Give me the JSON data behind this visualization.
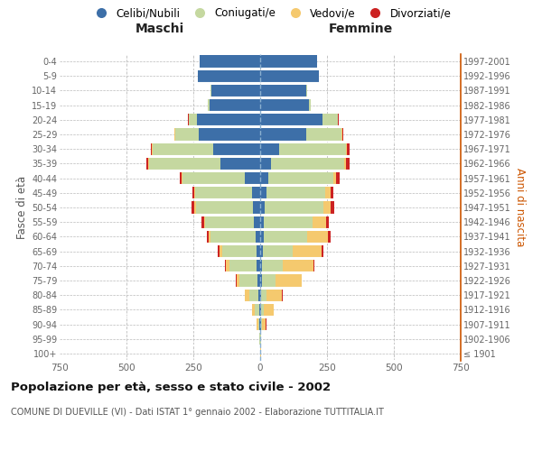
{
  "age_groups": [
    "100+",
    "95-99",
    "90-94",
    "85-89",
    "80-84",
    "75-79",
    "70-74",
    "65-69",
    "60-64",
    "55-59",
    "50-54",
    "45-49",
    "40-44",
    "35-39",
    "30-34",
    "25-29",
    "20-24",
    "15-19",
    "10-14",
    "5-9",
    "0-4"
  ],
  "birth_years": [
    "≤ 1901",
    "1902-1906",
    "1907-1911",
    "1912-1916",
    "1917-1921",
    "1922-1926",
    "1927-1931",
    "1932-1936",
    "1937-1941",
    "1942-1946",
    "1947-1951",
    "1952-1956",
    "1957-1961",
    "1962-1966",
    "1967-1971",
    "1972-1976",
    "1977-1981",
    "1982-1986",
    "1987-1991",
    "1992-1996",
    "1997-2001"
  ],
  "male": {
    "celibi": [
      1,
      1,
      2,
      5,
      8,
      10,
      12,
      15,
      18,
      22,
      28,
      32,
      58,
      148,
      175,
      230,
      238,
      190,
      182,
      232,
      228
    ],
    "coniugati": [
      0,
      1,
      5,
      14,
      34,
      68,
      102,
      128,
      168,
      183,
      212,
      212,
      232,
      268,
      228,
      88,
      28,
      5,
      3,
      0,
      0
    ],
    "vedovi": [
      0,
      1,
      5,
      10,
      14,
      10,
      14,
      10,
      5,
      5,
      5,
      3,
      3,
      2,
      2,
      2,
      2,
      0,
      0,
      0,
      0
    ],
    "divorziati": [
      0,
      0,
      0,
      0,
      1,
      2,
      3,
      5,
      8,
      10,
      12,
      8,
      8,
      8,
      5,
      2,
      2,
      0,
      0,
      0,
      0
    ]
  },
  "female": {
    "nubili": [
      1,
      1,
      2,
      5,
      5,
      8,
      8,
      10,
      12,
      15,
      18,
      22,
      30,
      42,
      72,
      172,
      232,
      182,
      172,
      218,
      212
    ],
    "coniugate": [
      0,
      1,
      5,
      10,
      18,
      48,
      78,
      112,
      162,
      182,
      218,
      222,
      242,
      272,
      248,
      132,
      58,
      8,
      3,
      0,
      0
    ],
    "vedove": [
      1,
      3,
      14,
      34,
      58,
      98,
      112,
      108,
      78,
      48,
      28,
      18,
      12,
      8,
      5,
      3,
      2,
      0,
      0,
      0,
      0
    ],
    "divorziate": [
      0,
      0,
      1,
      1,
      2,
      2,
      5,
      8,
      12,
      12,
      12,
      12,
      12,
      12,
      8,
      5,
      3,
      0,
      0,
      0,
      0
    ]
  },
  "colors": {
    "celibi": "#3d6fa8",
    "coniugati": "#c5d8a0",
    "vedovi": "#f5c96e",
    "divorziati": "#cc2222"
  },
  "title": "Popolazione per età, sesso e stato civile - 2002",
  "subtitle": "COMUNE DI DUEVILLE (VI) - Dati ISTAT 1° gennaio 2002 - Elaborazione TUTTITALIA.IT",
  "label_maschi": "Maschi",
  "label_femmine": "Femmine",
  "ylabel_left": "Fasce di età",
  "ylabel_right": "Anni di nascita",
  "legend_labels": [
    "Celibi/Nubili",
    "Coniugati/e",
    "Vedovi/e",
    "Divorziati/e"
  ],
  "xlim": 750,
  "background_color": "#ffffff",
  "grid_color": "#bbbbbb"
}
